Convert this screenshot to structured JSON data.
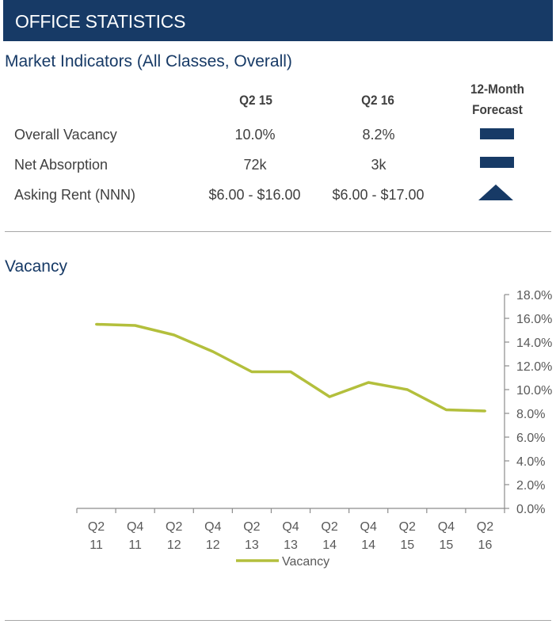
{
  "banner": {
    "title": "OFFICE STATISTICS"
  },
  "indicators": {
    "title": "Market Indicators (All Classes, Overall)",
    "columns": [
      "Q2 15",
      "Q2 16"
    ],
    "forecast_header": [
      "12-Month",
      "Forecast"
    ],
    "rows": [
      {
        "label": "Overall Vacancy",
        "q2_15": "10.0%",
        "q2_16": "8.2%",
        "forecast_icon": "flat-dash-icon"
      },
      {
        "label": "Net Absorption",
        "q2_15": "72k",
        "q2_16": "3k",
        "forecast_icon": "flat-dash-icon"
      },
      {
        "label": "Asking Rent (NNN)",
        "q2_15": "$6.00 - $16.00",
        "q2_16": "$6.00 - $17.00",
        "forecast_icon": "up-triangle-icon"
      }
    ],
    "icon_color": "#173a66"
  },
  "vacancy": {
    "title": "Vacancy"
  },
  "chart_data": {
    "type": "line",
    "categories": [
      [
        "Q2",
        "11"
      ],
      [
        "Q4",
        "11"
      ],
      [
        "Q2",
        "12"
      ],
      [
        "Q4",
        "12"
      ],
      [
        "Q2",
        "13"
      ],
      [
        "Q4",
        "13"
      ],
      [
        "Q2",
        "14"
      ],
      [
        "Q4",
        "14"
      ],
      [
        "Q2",
        "15"
      ],
      [
        "Q4",
        "15"
      ],
      [
        "Q2",
        "16"
      ]
    ],
    "series": [
      {
        "name": "Vacancy",
        "color": "#b3bf3c",
        "values": [
          15.5,
          15.4,
          14.6,
          13.2,
          11.5,
          11.5,
          9.4,
          10.6,
          10.0,
          8.3,
          8.2
        ]
      }
    ],
    "ylim": [
      0,
      18
    ],
    "y_ticks": [
      "0.0%",
      "2.0%",
      "4.0%",
      "6.0%",
      "8.0%",
      "10.0%",
      "12.0%",
      "14.0%",
      "16.0%",
      "18.0%"
    ],
    "y_axis_side": "right",
    "grid": false,
    "legend_position": "bottom"
  }
}
